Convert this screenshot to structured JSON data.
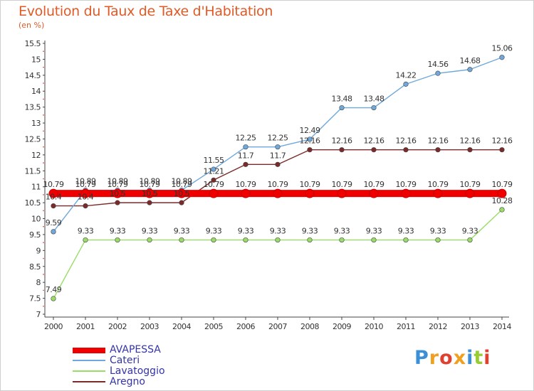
{
  "header": {
    "title": "Evolution du Taux de Taxe d'Habitation",
    "subtitle": "(en %)"
  },
  "chart_data": {
    "type": "line",
    "title": "Evolution du Taux de Taxe d'Habitation",
    "subtitle": "(en %)",
    "xlabel": "",
    "ylabel": "",
    "ylim": [
      7,
      15.5
    ],
    "yticks": [
      "7",
      "7.5",
      "8",
      "8.5",
      "9",
      "9.5",
      "10",
      "10.5",
      "11",
      "11.5",
      "12",
      "12.5",
      "13",
      "13.5",
      "14",
      "14.5",
      "15",
      "15.5"
    ],
    "x": [
      "2000",
      "2001",
      "2002",
      "2003",
      "2004",
      "2005",
      "2006",
      "2007",
      "2008",
      "2009",
      "2010",
      "2011",
      "2012",
      "2013",
      "2014"
    ],
    "grid": false,
    "legend_position": "bottom-left",
    "series": [
      {
        "name": "AVAPESSA",
        "color": "#ee0000",
        "values": [
          10.79,
          10.79,
          10.79,
          10.79,
          10.79,
          10.79,
          10.79,
          10.79,
          10.79,
          10.79,
          10.79,
          10.79,
          10.79,
          10.79,
          10.79
        ],
        "labels": [
          "10.79",
          "10.79",
          "10.79",
          "10.79",
          "10.79",
          "10.79",
          "10.79",
          "10.79",
          "10.79",
          "10.79",
          "10.79",
          "10.79",
          "10.79",
          "10.79",
          "10.79"
        ]
      },
      {
        "name": "Cateri",
        "color": "#6fa8dc",
        "values": [
          9.59,
          10.89,
          10.89,
          10.89,
          10.89,
          11.55,
          12.25,
          12.25,
          12.49,
          13.48,
          13.48,
          14.22,
          14.56,
          14.68,
          15.06
        ],
        "labels": [
          "9.59",
          "10.89",
          "10.89",
          "10.89",
          "10.89",
          "11.55",
          "12.25",
          "12.25",
          "12.49",
          "13.48",
          "13.48",
          "14.22",
          "14.56",
          "14.68",
          "15.06"
        ]
      },
      {
        "name": "Lavatoggio",
        "color": "#99dd66",
        "values": [
          7.49,
          9.33,
          9.33,
          9.33,
          9.33,
          9.33,
          9.33,
          9.33,
          9.33,
          9.33,
          9.33,
          9.33,
          9.33,
          9.33,
          10.28
        ],
        "labels": [
          "7.49",
          "9.33",
          "9.33",
          "9.33",
          "9.33",
          "9.33",
          "9.33",
          "9.33",
          "9.33",
          "9.33",
          "9.33",
          "9.33",
          "9.33",
          "9.33",
          "10.28"
        ]
      },
      {
        "name": "Aregno",
        "color": "#7b2a2a",
        "values": [
          10.4,
          10.4,
          10.5,
          10.5,
          10.5,
          11.21,
          11.7,
          11.7,
          12.16,
          12.16,
          12.16,
          12.16,
          12.16,
          12.16,
          12.16
        ],
        "labels": [
          "10.4",
          "10.4",
          "10.5",
          "10.5",
          "10.5",
          "11.21",
          "11.7",
          "11.7",
          "12.16",
          "12.16",
          "12.16",
          "12.16",
          "12.16",
          "12.16",
          "12.16"
        ]
      }
    ]
  },
  "legend": {
    "items": [
      {
        "label": "AVAPESSA",
        "color": "#ee0000"
      },
      {
        "label": "Cateri",
        "color": "#6fa8dc"
      },
      {
        "label": "Lavatoggio",
        "color": "#99dd66"
      },
      {
        "label": "Aregno",
        "color": "#7b2a2a"
      }
    ]
  },
  "logo": {
    "text": "Proxiti",
    "colors": [
      "#3b8fd6",
      "#f0a020",
      "#e04030",
      "#f0a020",
      "#3b8fd6",
      "#99cc33",
      "#e04030"
    ]
  }
}
